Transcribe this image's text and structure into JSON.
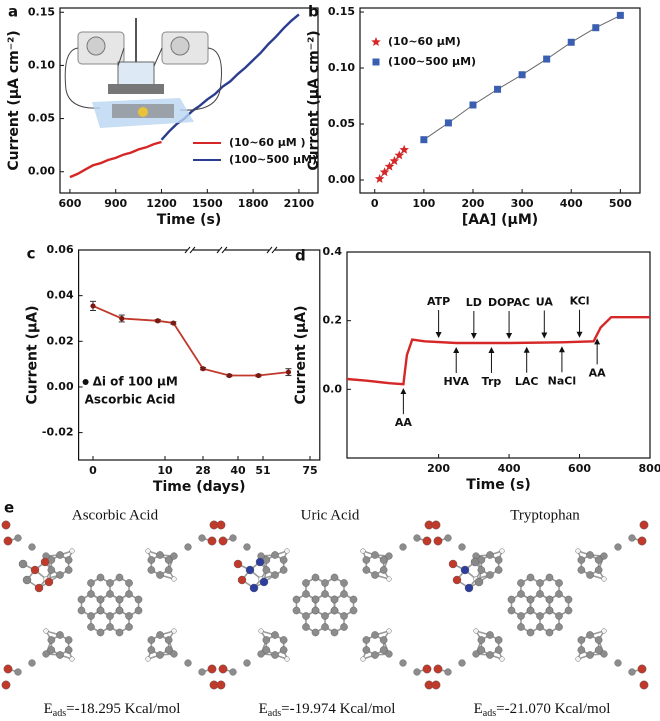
{
  "chart_data": [
    {
      "panel": "a",
      "type": "line",
      "xlabel": "Time (s)",
      "ylabel": "Current (μA cm⁻²)",
      "xlim": [
        535,
        2225
      ],
      "xticks": [
        600,
        900,
        1200,
        1500,
        1800,
        2100
      ],
      "ylim": [
        -0.02,
        0.154
      ],
      "yticks": [
        {
          "value": 0,
          "label": "0.00"
        },
        {
          "value": 0.05,
          "label": "0.05"
        },
        {
          "value": 0.1,
          "label": "0.10"
        },
        {
          "value": 0.15,
          "label": "0.15"
        }
      ],
      "legend": "lower right",
      "series": [
        {
          "name": "(10~60 μM )",
          "color": "#d62728",
          "x": [
            600,
            650,
            700,
            750,
            800,
            850,
            900,
            950,
            1000,
            1050,
            1100,
            1150,
            1200
          ],
          "values": [
            -0.005,
            -0.002,
            0.002,
            0.006,
            0.008,
            0.011,
            0.013,
            0.016,
            0.018,
            0.021,
            0.023,
            0.026,
            0.028
          ]
        },
        {
          "name": "(100~500 μM)",
          "color": "#2b3d8f",
          "x": [
            1200,
            1250,
            1300,
            1350,
            1400,
            1450,
            1500,
            1550,
            1600,
            1650,
            1700,
            1750,
            1800,
            1850,
            1900,
            1950,
            2000,
            2050,
            2100
          ],
          "values": [
            0.03,
            0.038,
            0.045,
            0.05,
            0.057,
            0.062,
            0.068,
            0.073,
            0.08,
            0.085,
            0.092,
            0.098,
            0.105,
            0.112,
            0.12,
            0.127,
            0.135,
            0.142,
            0.148
          ]
        }
      ]
    },
    {
      "panel": "b",
      "type": "scatter",
      "xlabel": "[AA] (μM)",
      "ylabel": "Current (μA cm⁻²)",
      "xlim": [
        -30,
        540
      ],
      "xticks": [
        0,
        100,
        200,
        300,
        400,
        500
      ],
      "ylim": [
        -0.0116,
        0.1536
      ],
      "yticks": [
        {
          "value": 0,
          "label": "0.00"
        },
        {
          "value": 0.05,
          "label": "0.05"
        },
        {
          "value": 0.1,
          "label": "0.10"
        },
        {
          "value": 0.15,
          "label": "0.15"
        }
      ],
      "legend": "upper left",
      "line_color": "#666666",
      "series": [
        {
          "name": "(10~60 μM)",
          "color": "#d62728",
          "marker": "star",
          "x": [
            10,
            20,
            30,
            40,
            50,
            60
          ],
          "values": [
            0.001,
            0.007,
            0.012,
            0.017,
            0.022,
            0.027
          ]
        },
        {
          "name": "(100~500 μM)",
          "color": "#3a5fb0",
          "marker": "square",
          "x": [
            100,
            150,
            200,
            250,
            300,
            350,
            400,
            450,
            500
          ],
          "values": [
            0.036,
            0.051,
            0.067,
            0.081,
            0.094,
            0.108,
            0.123,
            0.136,
            0.147
          ]
        }
      ]
    },
    {
      "panel": "c",
      "type": "errorline",
      "xlabel": "Time (days)",
      "ylabel": "Current (μA)",
      "xlim": [
        -2,
        80
      ],
      "xticks": [
        0,
        10,
        28,
        40,
        51,
        75
      ],
      "ylim": [
        -0.032,
        0.06
      ],
      "yticks": [
        {
          "value": -0.02,
          "label": "-0.02"
        },
        {
          "value": 0,
          "label": "0.00"
        },
        {
          "value": 0.02,
          "label": "0.02"
        },
        {
          "value": 0.04,
          "label": "0.04"
        },
        {
          "value": 0.06,
          "label": "0.06"
        }
      ],
      "color": "#c0392b",
      "x": [
        0,
        4,
        9,
        14,
        28,
        37,
        49,
        64
      ],
      "values": [
        0.0355,
        0.03,
        0.029,
        0.028,
        0.008,
        0.005,
        0.005,
        0.0065
      ],
      "errors": [
        0.002,
        0.0015,
        0.0005,
        0.0005,
        0.0005,
        0.0005,
        0.0005,
        0.0015
      ],
      "annotation": [
        "Δi of 100 μM",
        "Ascorbic Acid"
      ]
    },
    {
      "panel": "d",
      "type": "line",
      "xlabel": "Time (s)",
      "ylabel": "Current (μA)",
      "xlim": [
        -60,
        800
      ],
      "xticks": [
        200,
        400,
        600,
        800
      ],
      "ylim": [
        -0.2,
        0.4
      ],
      "yticks": [
        {
          "value": 0,
          "label": "0.0"
        },
        {
          "value": 0.2,
          "label": "0.2"
        },
        {
          "value": 0.4,
          "label": "0.4"
        }
      ],
      "series": [
        {
          "color": "#d62728",
          "x": [
            -60,
            0,
            60,
            100,
            110,
            125,
            160,
            250,
            400,
            550,
            640,
            660,
            690,
            800
          ],
          "values": [
            0.03,
            0.025,
            0.018,
            0.015,
            0.1,
            0.145,
            0.14,
            0.135,
            0.135,
            0.137,
            0.14,
            0.18,
            0.21,
            0.21
          ]
        }
      ],
      "annotations": [
        {
          "label": "AA",
          "x": 100,
          "side": "below"
        },
        {
          "label": "ATP",
          "x": 200,
          "side": "above"
        },
        {
          "label": "HVA",
          "x": 250,
          "side": "below"
        },
        {
          "label": "LD",
          "x": 300,
          "side": "above"
        },
        {
          "label": "Trp",
          "x": 350,
          "side": "below"
        },
        {
          "label": "DOPAC",
          "x": 400,
          "side": "above"
        },
        {
          "label": "LAC",
          "x": 450,
          "side": "below"
        },
        {
          "label": "UA",
          "x": 500,
          "side": "above"
        },
        {
          "label": "NaCl",
          "x": 550,
          "side": "below"
        },
        {
          "label": "KCl",
          "x": 600,
          "side": "above"
        },
        {
          "label": "AA",
          "x": 650,
          "side": "below"
        }
      ]
    }
  ],
  "panel_e": {
    "panel": "e",
    "molecules": [
      {
        "name": "Ascorbic Acid",
        "energy": {
          "symbol": "E",
          "subscript": "ads",
          "value": "=-18.295 Kcal/mol"
        },
        "adsorbate": [
          "#c0392b",
          "#c0392b",
          "#888888"
        ]
      },
      {
        "name": "Uric Acid",
        "energy": {
          "symbol": "E",
          "subscript": "ads",
          "value": "=-19.974 Kcal/mol"
        },
        "adsorbate": [
          "#2c3e9e",
          "#2c3e9e",
          "#c0392b"
        ]
      },
      {
        "name": "Tryptophan",
        "energy": {
          "symbol": "E",
          "subscript": "ads",
          "value": "=-21.070 Kcal/mol"
        },
        "adsorbate": [
          "#2c3e9e",
          "#888888",
          "#c0392b"
        ]
      }
    ]
  }
}
